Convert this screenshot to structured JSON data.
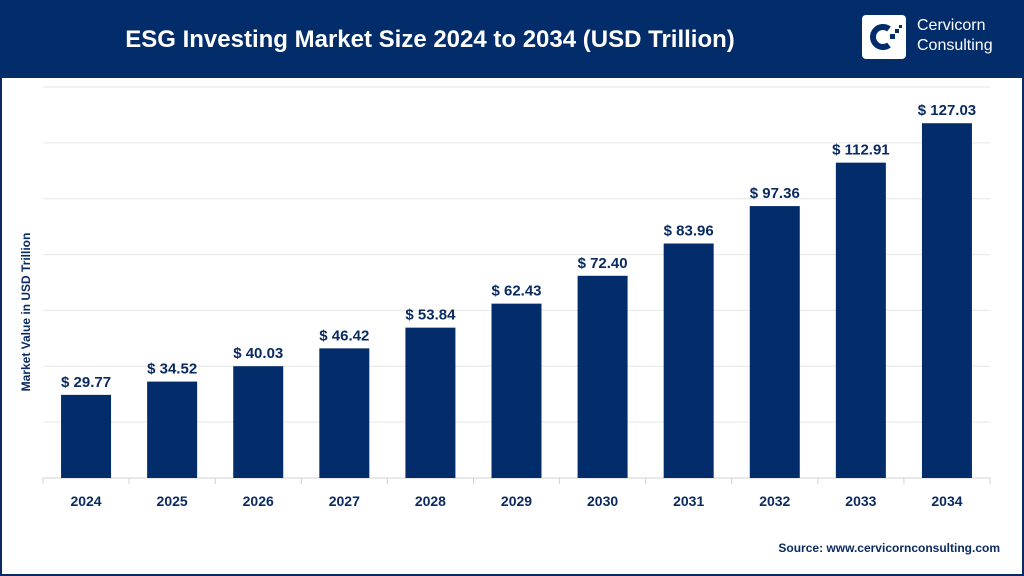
{
  "header": {
    "title": "ESG Investing Market Size 2024 to 2034 (USD Trillion)"
  },
  "logo": {
    "line1": "Cervicorn",
    "line2": "Consulting"
  },
  "source": "Source: www.cervicornconsulting.com",
  "colors": {
    "bar": "#022d6a",
    "header": "#022d6a",
    "grid": "#e6e6e6"
  },
  "chart_data": {
    "type": "bar",
    "title": "ESG Investing Market Size 2024 to 2034 (USD Trillion)",
    "xlabel": "",
    "ylabel": "Market Value in USD Trillion",
    "categories": [
      "2024",
      "2025",
      "2026",
      "2027",
      "2028",
      "2029",
      "2030",
      "2031",
      "2032",
      "2033",
      "2034"
    ],
    "values": [
      29.77,
      34.52,
      40.03,
      46.42,
      53.84,
      62.43,
      72.4,
      83.96,
      97.36,
      112.91,
      127.03
    ],
    "data_labels": [
      "$ 29.77",
      "$ 34.52",
      "$ 40.03",
      "$ 46.42",
      "$ 53.84",
      "$ 62.43",
      "$ 72.40",
      "$ 83.96",
      "$ 97.36",
      "$ 112.91",
      "$ 127.03"
    ],
    "ylim": [
      0,
      140
    ],
    "grid": true,
    "legend": "none"
  }
}
